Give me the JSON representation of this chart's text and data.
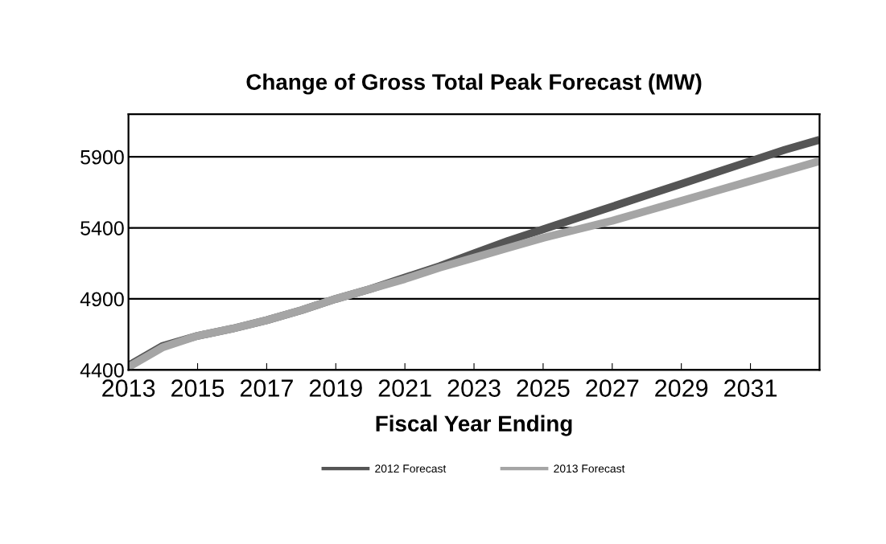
{
  "chart_data": {
    "type": "line",
    "title": "Change of Gross Total Peak Forecast (MW)",
    "xlabel": "Fiscal Year Ending",
    "x": [
      2013,
      2014,
      2015,
      2016,
      2017,
      2018,
      2019,
      2020,
      2021,
      2022,
      2023,
      2024,
      2025,
      2026,
      2027,
      2028,
      2029,
      2030,
      2031,
      2032,
      2033
    ],
    "series": [
      {
        "name": "2012 Forecast",
        "color": "#555555",
        "values": [
          4430,
          4570,
          4640,
          4690,
          4750,
          4820,
          4900,
          4970,
          5050,
          5130,
          5220,
          5310,
          5390,
          5470,
          5550,
          5630,
          5710,
          5790,
          5870,
          5950,
          6020
        ]
      },
      {
        "name": "2013 Forecast",
        "color": "#a5a5a5",
        "values": [
          4420,
          4560,
          4640,
          4690,
          4750,
          4820,
          4900,
          4970,
          5040,
          5120,
          5190,
          5260,
          5330,
          5390,
          5450,
          5520,
          5590,
          5660,
          5730,
          5800,
          5870
        ]
      }
    ],
    "xlim": [
      2013,
      2033
    ],
    "xticks": [
      2013,
      2015,
      2017,
      2019,
      2021,
      2023,
      2025,
      2027,
      2029,
      2031
    ],
    "ylim": [
      4400,
      6200
    ],
    "yticks": [
      4400,
      4900,
      5400,
      5900
    ],
    "grid": "y",
    "legend": "bottom",
    "line_style": "solid",
    "marker": "none"
  }
}
